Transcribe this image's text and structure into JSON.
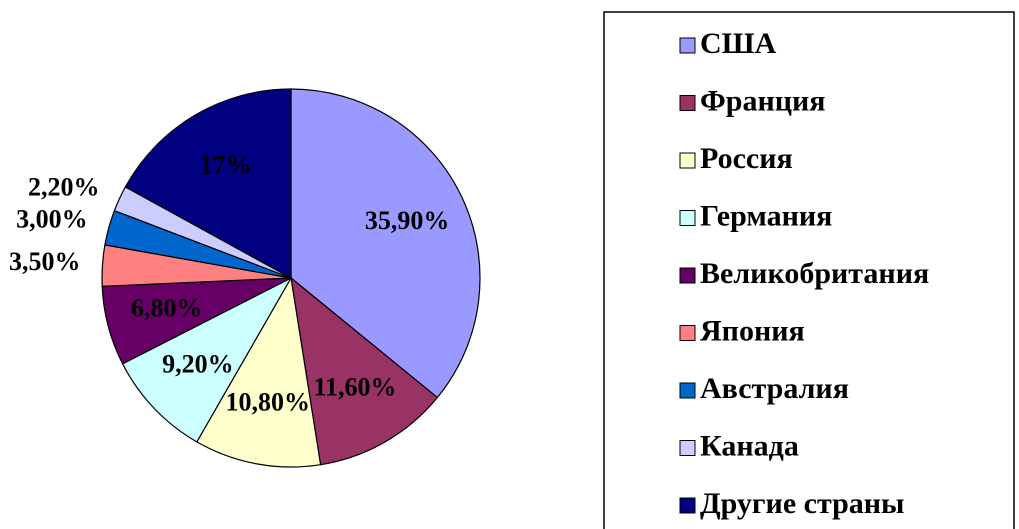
{
  "chart_data": {
    "type": "pie",
    "categories": [
      "США",
      "Франция",
      "Россия",
      "Германия",
      "Великобритания",
      "Япония",
      "Австралия",
      "Канада",
      "Другие страны"
    ],
    "values": [
      35.9,
      11.6,
      10.8,
      9.2,
      6.8,
      3.5,
      3.0,
      2.2,
      17
    ],
    "value_labels": [
      "35,90%",
      "11,60%",
      "10,80%",
      "9,20%",
      "6,80%",
      "3,50%",
      "3,00%",
      "2,20%",
      "17%"
    ],
    "colors": [
      "#9999ff",
      "#993366",
      "#ffffcc",
      "#ccffff",
      "#660066",
      "#ff8080",
      "#0066cc",
      "#ccccff",
      "#000080"
    ],
    "legend": "right"
  }
}
